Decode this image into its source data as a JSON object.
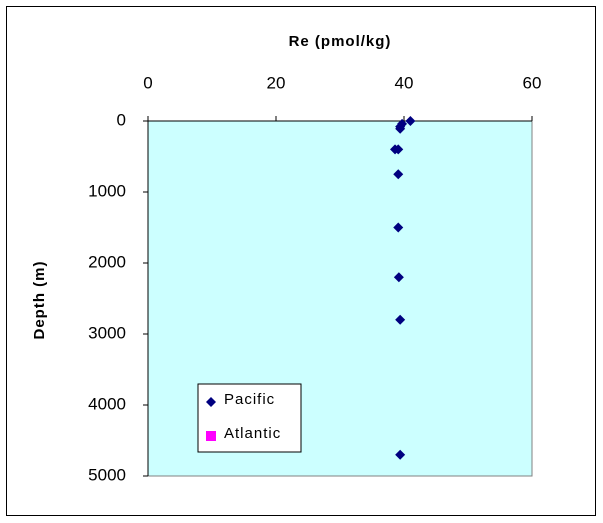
{
  "chart_data": {
    "type": "scatter",
    "title": "Re (pmol/kg)",
    "y_label": "Depth (m)",
    "xlim": [
      0,
      60
    ],
    "xticks": [
      0,
      20,
      40,
      60
    ],
    "x_axis_position": "top",
    "ylim": [
      0,
      5000
    ],
    "yticks": [
      0,
      1000,
      2000,
      3000,
      4000,
      5000
    ],
    "y_inverted": true,
    "plot_background": "#ccffff",
    "legend": "lower left",
    "series": [
      {
        "name": "Pacific",
        "color": "#000080",
        "marker": "diamond",
        "x": [
          41,
          39.7,
          39.4,
          39.4,
          38.6,
          39.1,
          39.1,
          39.1,
          39.2,
          39.4,
          39.4
        ],
        "y": [
          0,
          40,
          80,
          110,
          400,
          400,
          750,
          1500,
          2200,
          2800,
          4700
        ]
      },
      {
        "name": "Atlantic",
        "color": "#ff00ff",
        "marker": "square",
        "x": [],
        "y": []
      }
    ]
  }
}
